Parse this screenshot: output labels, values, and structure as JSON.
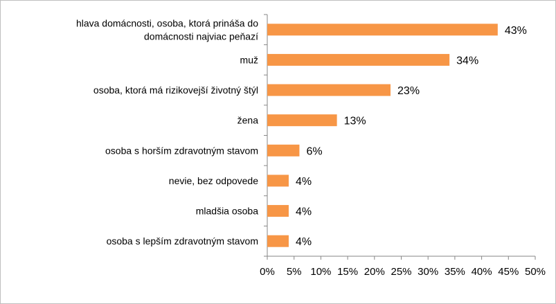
{
  "chart_data": {
    "type": "bar",
    "orientation": "horizontal",
    "categories": [
      [
        "hlava domácnosti, osoba, ktorá prináša do",
        "domácnosti najviac peňazí"
      ],
      [
        "muž"
      ],
      [
        "osoba, ktorá má rizikovejší životný štýl"
      ],
      [
        "žena"
      ],
      [
        "osoba s horším zdravotným stavom"
      ],
      [
        "nevie, bez odpovede"
      ],
      [
        "mladšia osoba"
      ],
      [
        "osoba s lepším zdravotným stavom"
      ]
    ],
    "values": [
      43,
      34,
      23,
      13,
      6,
      4,
      4,
      4
    ],
    "value_labels": [
      "43%",
      "34%",
      "23%",
      "13%",
      "6%",
      "4%",
      "4%",
      "4%"
    ],
    "x_ticks": [
      0,
      5,
      10,
      15,
      20,
      25,
      30,
      35,
      40,
      45,
      50
    ],
    "x_tick_labels": [
      "0%",
      "5%",
      "10%",
      "15%",
      "20%",
      "25%",
      "30%",
      "35%",
      "40%",
      "45%",
      "50%"
    ],
    "xlim": [
      0,
      50
    ],
    "grid": false,
    "legend": "none",
    "bar_color": "#F79646"
  }
}
